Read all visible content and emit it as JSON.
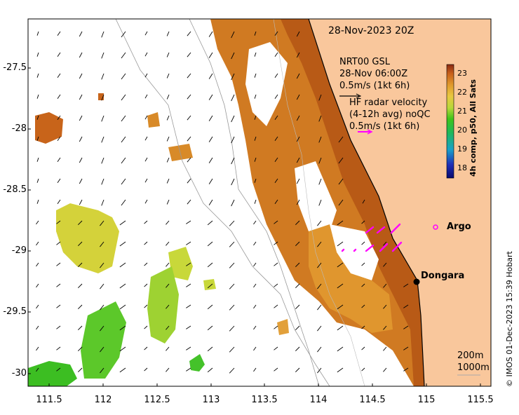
{
  "title": "28-Nov-2023 20Z",
  "legend": {
    "model_line1": "NRT00 GSL",
    "model_line2": "28-Nov 06:00Z",
    "model_line3": "0.5m/s (1kt 6h)",
    "radar_line1": "HF radar velocity",
    "radar_line2": "(4-12h avg) noQC",
    "radar_line3": "0.5m/s (1kt 6h)"
  },
  "places": {
    "argo": "Argo",
    "dongara": "Dongara"
  },
  "colorbar": {
    "label": "4h comp, p50, All Sats",
    "ticks": [
      "23",
      "22",
      "21",
      "20",
      "19",
      "18"
    ],
    "values": [
      23,
      22,
      21,
      20,
      19,
      18
    ]
  },
  "axes": {
    "yticks": [
      "-27.5",
      "-28",
      "-28.5",
      "-29",
      "-29.5",
      "-30"
    ],
    "xticks": [
      "111.5",
      "112",
      "112.5",
      "113",
      "113.5",
      "114",
      "114.5",
      "115",
      "115.5"
    ]
  },
  "depth_contours": [
    "200m",
    "1000m"
  ],
  "credit": "© IMOS 01-Dec-2023 15:39 Hobart",
  "colors": {
    "land": "#f9c79c",
    "sst_warm": "#c8641a",
    "sst_mid": "#e2a03a",
    "sst_cool": "#b9d93a",
    "sst_cold": "#2fbe1e",
    "radar": "#ff00ff"
  }
}
